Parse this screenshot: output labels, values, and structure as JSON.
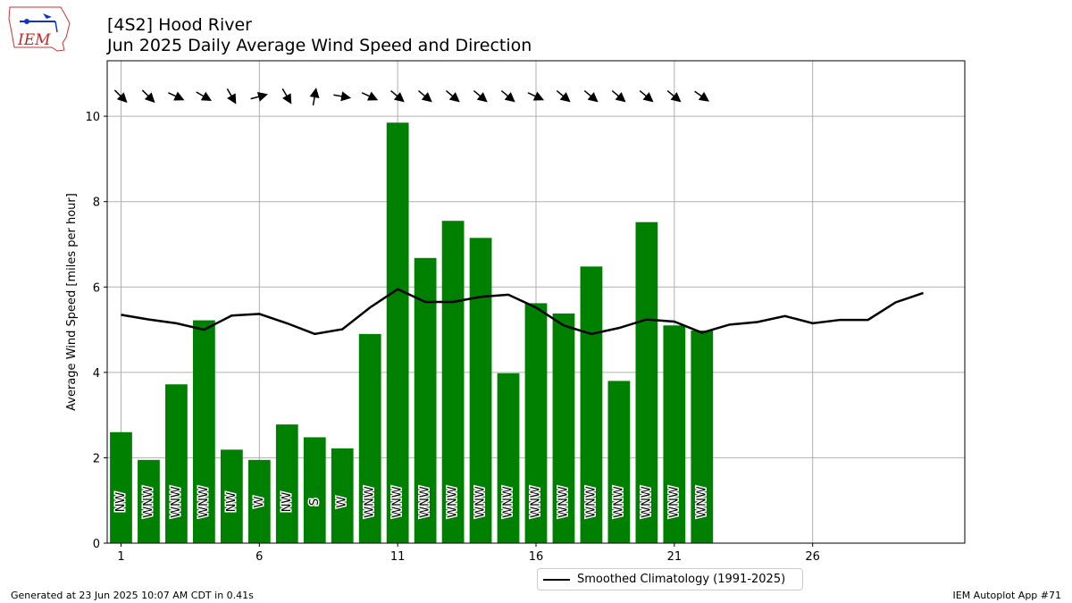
{
  "header": {
    "title_line1": "[4S2] Hood River",
    "title_line2": "Jun 2025 Daily Average Wind Speed and Direction"
  },
  "logo": {
    "text": "IEM",
    "icon": "iem-iowa-logo"
  },
  "footer": {
    "left": "Generated at 23 Jun 2025 10:07 AM CDT in 0.41s",
    "right": "IEM Autoplot App #71"
  },
  "chart_data": {
    "type": "bar",
    "title": "Jun 2025 Daily Average Wind Speed and Direction",
    "ylabel": "Average Wind Speed [miles per hour]",
    "xlabel": "",
    "xlim": [
      0.5,
      31.5
    ],
    "ylim": [
      0,
      11.3
    ],
    "xticks": [
      1,
      6,
      11,
      16,
      21,
      26
    ],
    "yticks": [
      0,
      2,
      4,
      6,
      8,
      10
    ],
    "grid": true,
    "legend_position": "below-center",
    "bar_color": "#008000",
    "days": [
      1,
      2,
      3,
      4,
      5,
      6,
      7,
      8,
      9,
      10,
      11,
      12,
      13,
      14,
      15,
      16,
      17,
      18,
      19,
      20,
      21,
      22
    ],
    "speeds": [
      2.6,
      1.95,
      3.72,
      5.22,
      2.19,
      1.95,
      2.78,
      2.48,
      2.22,
      4.9,
      9.85,
      6.68,
      7.55,
      7.15,
      3.98,
      5.62,
      5.38,
      6.48,
      3.8,
      7.52,
      5.1,
      4.98
    ],
    "directions": [
      "NW",
      "WNW",
      "WNW",
      "WNW",
      "NW",
      "W",
      "NW",
      "S",
      "W",
      "WNW",
      "WNW",
      "WNW",
      "WNW",
      "WNW",
      "WNW",
      "WNW",
      "WNW",
      "WNW",
      "WNW",
      "WNW",
      "WNW",
      "WNW"
    ],
    "arrow_bearings_deg": [
      135,
      135,
      115,
      120,
      150,
      75,
      150,
      10,
      100,
      115,
      130,
      130,
      130,
      130,
      130,
      115,
      130,
      130,
      130,
      130,
      130,
      125
    ],
    "climatology": {
      "name": "Smoothed Climatology (1991-2025)",
      "color": "#000000",
      "x": [
        1,
        2,
        3,
        4,
        5,
        6,
        7,
        8,
        9,
        10,
        11,
        12,
        13,
        14,
        15,
        16,
        17,
        18,
        19,
        20,
        21,
        22,
        23,
        24,
        25,
        26,
        27,
        28,
        29,
        30
      ],
      "y": [
        5.35,
        5.24,
        5.15,
        5.0,
        5.33,
        5.37,
        5.15,
        4.9,
        5.01,
        5.52,
        5.95,
        5.65,
        5.65,
        5.77,
        5.82,
        5.52,
        5.1,
        4.9,
        5.04,
        5.24,
        5.19,
        4.93,
        5.12,
        5.18,
        5.32,
        5.15,
        5.23,
        5.23,
        5.64,
        5.86
      ]
    }
  }
}
